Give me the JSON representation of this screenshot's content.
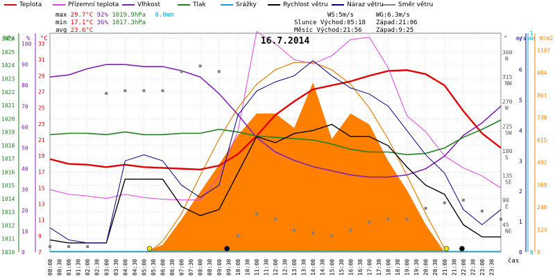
{
  "legend": [
    {
      "label": "Teplota",
      "color": "#e00000"
    },
    {
      "label": "Přízemní teplota",
      "color": "#e040e0"
    },
    {
      "label": "Vlhkost",
      "color": "#8020b0"
    },
    {
      "label": "Tlak",
      "color": "#208020"
    },
    {
      "label": "Srážky",
      "color": "#00aacc"
    },
    {
      "label": "Rychlost větru",
      "color": "#000000"
    },
    {
      "label": "Náraz větru",
      "color": "#000080"
    },
    {
      "label": "Směr větru",
      "color": "#808080"
    }
  ],
  "stats": {
    "max_label": "max",
    "max_temp": "29.7°C",
    "max_hum": "92%",
    "max_press": "1019.9hPa",
    "max_rain": "0.0mm",
    "min_label": "min",
    "min_temp": "17.1°C",
    "min_hum": "36%",
    "min_press": "1017.3hPa",
    "avg_label": "avg",
    "avg_temp": "23.6°C",
    "ws": "WS:5m/s",
    "wg": "WG:6.3m/s",
    "slunce": "Slunce Východ:05:18",
    "slunce_zapad": "Západ:21:06",
    "mesic": "Měsíc  Východ:21:56",
    "mesic_zapad": "Západ:9:25"
  },
  "colors": {
    "temp": "#e00000",
    "ground": "#e040e0",
    "hum": "#8020b0",
    "press": "#208020",
    "rain": "#00aacc",
    "wind": "#000000",
    "gust": "#000080",
    "dir": "#808080",
    "solar": "#ff8000",
    "solar_curve": "#e08000",
    "grid": "#c8c8c8"
  },
  "chart_data": {
    "type": "line",
    "title": "16.7.2014",
    "xlabel": "čas",
    "x": [
      "00:00",
      "00:30",
      "01:00",
      "01:30",
      "02:00",
      "02:30",
      "03:00",
      "03:30",
      "04:00",
      "04:30",
      "05:00",
      "05:30",
      "06:00",
      "06:30",
      "07:00",
      "07:30",
      "08:00",
      "08:30",
      "09:00",
      "09:30",
      "10:00",
      "10:30",
      "11:00",
      "11:30",
      "12:00",
      "12:30",
      "13:00",
      "13:30",
      "14:00",
      "14:30",
      "15:00",
      "15:30",
      "16:00",
      "16:30",
      "17:00",
      "17:30",
      "18:00",
      "18:30",
      "19:00",
      "19:30",
      "20:00",
      "20:30",
      "21:00",
      "21:30",
      "22:00",
      "22:30",
      "23:00",
      "23:30"
    ],
    "axes": {
      "hpa": {
        "label": "hPa",
        "ticks": [
          "1026",
          "1025",
          "1024",
          "1023",
          "1022",
          "1021",
          "1020",
          "1019",
          "1018",
          "1017",
          "1016",
          "1015",
          "1014",
          "1013",
          "1012",
          "1011",
          "1010"
        ],
        "range": [
          1010,
          1026.4
        ]
      },
      "pct": {
        "label": "%",
        "ticks": [
          "100",
          "90",
          "80",
          "70",
          "60",
          "50",
          "40",
          "30",
          "20",
          "10",
          "0"
        ],
        "range": [
          0,
          105
        ]
      },
      "temp": {
        "label": "°C",
        "ticks": [
          "33",
          "31",
          "29",
          "27",
          "25",
          "23",
          "21",
          "19",
          "17",
          "15",
          "13",
          "11",
          "9",
          "7"
        ],
        "range": [
          7,
          34.3
        ]
      },
      "dir": {
        "label": "°",
        "ticks": [
          {
            "deg": "360",
            "name": "N"
          },
          {
            "deg": "315",
            "name": "NW"
          },
          {
            "deg": "270",
            "name": "W"
          },
          {
            "deg": "225",
            "name": "SW"
          },
          {
            "deg": "180",
            "name": "S"
          },
          {
            "deg": "135",
            "name": "SE"
          },
          {
            "deg": "90",
            "name": "E"
          },
          {
            "deg": "45",
            "name": "NE"
          }
        ],
        "range": [
          0,
          400
        ]
      },
      "ms": {
        "label": "m/s",
        "ticks": [
          "7",
          "6",
          "5",
          "4",
          "3",
          "2",
          "1",
          "0"
        ],
        "range": [
          0,
          7.2
        ]
      },
      "mm": {
        "label": "mm",
        "ticks": [
          "1",
          "0"
        ],
        "range": [
          0,
          1
        ]
      },
      "wm2": {
        "label": "W/m2",
        "ticks": [
          "1107",
          "984",
          "861",
          "738",
          "615",
          "492",
          "369",
          "246",
          "123",
          "0"
        ],
        "range": [
          0,
          1200
        ]
      }
    },
    "series": [
      {
        "name": "Teplota",
        "axis": "temp",
        "x": [
          0,
          1,
          2,
          3,
          4,
          5,
          6,
          7,
          8,
          9,
          10,
          11,
          12,
          13,
          14,
          15,
          16,
          17,
          18,
          19,
          20,
          21,
          22,
          23,
          24
        ],
        "values": [
          18.6,
          18.0,
          17.9,
          17.6,
          17.9,
          17.6,
          17.5,
          17.4,
          17.3,
          17.8,
          19.2,
          21.5,
          24.1,
          25.8,
          27.3,
          27.8,
          28.3,
          29.0,
          29.6,
          29.7,
          29.2,
          27.8,
          24.6,
          21.8,
          20.0
        ]
      },
      {
        "name": "Přízemní teplota",
        "axis": "temp",
        "x": [
          0,
          1,
          2,
          3,
          4,
          5,
          6,
          7,
          8,
          9,
          10,
          11,
          12,
          13,
          14,
          15,
          16,
          17,
          18,
          19,
          20,
          21,
          22,
          23,
          24
        ],
        "values": [
          14.8,
          14.2,
          14.0,
          13.7,
          14.2,
          13.8,
          13.6,
          13.5,
          13.5,
          16.5,
          22.0,
          34.5,
          33.0,
          31.0,
          30.5,
          31.5,
          33.5,
          33.8,
          30.0,
          24.0,
          22.0,
          19.0,
          17.5,
          16.5,
          15.0
        ]
      },
      {
        "name": "Vlhkost",
        "axis": "pct",
        "x": [
          0,
          1,
          2,
          3,
          4,
          5,
          6,
          7,
          8,
          9,
          10,
          11,
          12,
          13,
          14,
          15,
          16,
          17,
          18,
          19,
          20,
          21,
          22,
          23,
          24
        ],
        "values": [
          84,
          85,
          88,
          90,
          90,
          89,
          89,
          87,
          84,
          76,
          66,
          55,
          48,
          44,
          41,
          39,
          37,
          36,
          36,
          37,
          40,
          46,
          56,
          62,
          70
        ]
      },
      {
        "name": "Tlak",
        "axis": "hpa",
        "x": [
          0,
          1,
          2,
          3,
          4,
          5,
          6,
          7,
          8,
          9,
          10,
          11,
          12,
          13,
          14,
          15,
          16,
          17,
          18,
          19,
          20,
          21,
          22,
          23,
          24
        ],
        "values": [
          1018.8,
          1018.9,
          1018.9,
          1018.8,
          1019.0,
          1018.8,
          1018.8,
          1018.9,
          1018.9,
          1019.2,
          1019.0,
          1018.7,
          1018.6,
          1018.5,
          1018.4,
          1018.1,
          1017.7,
          1017.5,
          1017.5,
          1017.3,
          1017.4,
          1017.8,
          1018.6,
          1019.2,
          1019.9
        ]
      },
      {
        "name": "Rychlost větru",
        "axis": "ms",
        "x": [
          0,
          1,
          2,
          3,
          4,
          5,
          6,
          7,
          8,
          9,
          10,
          11,
          12,
          13,
          14,
          15,
          16,
          17,
          18,
          19,
          20,
          21,
          22,
          23,
          24
        ],
        "values": [
          0.4,
          0.3,
          0.3,
          0.3,
          2.4,
          2.4,
          2.4,
          1.5,
          1.2,
          1.4,
          2.6,
          3.8,
          3.6,
          3.9,
          4.0,
          4.2,
          3.8,
          3.8,
          3.5,
          2.8,
          2.2,
          1.9,
          0.9,
          0.5,
          0.5
        ]
      },
      {
        "name": "Náraz větru",
        "axis": "ms",
        "x": [
          0,
          1,
          2,
          3,
          4,
          5,
          6,
          7,
          8,
          9,
          10,
          11,
          12,
          13,
          14,
          15,
          16,
          17,
          18,
          19,
          20,
          21,
          22,
          23,
          24
        ],
        "values": [
          0.8,
          0.4,
          0.3,
          0.3,
          3.0,
          3.2,
          3.0,
          2.2,
          1.8,
          2.2,
          4.5,
          5.3,
          5.6,
          5.8,
          6.3,
          5.8,
          5.4,
          5.2,
          4.8,
          4.0,
          3.2,
          2.6,
          1.4,
          0.9,
          1.4
        ]
      },
      {
        "name": "Směr větru",
        "axis": "dir",
        "x": [
          0,
          1,
          2,
          3,
          4,
          5,
          6,
          7,
          8,
          9,
          10,
          11,
          12,
          13,
          14,
          15,
          16,
          17,
          18,
          19,
          20,
          21,
          22,
          23,
          24
        ],
        "values": [
          10,
          10,
          10,
          290,
          295,
          295,
          295,
          330,
          340,
          330,
          30,
          70,
          60,
          40,
          35,
          30,
          40,
          55,
          60,
          60,
          80,
          90,
          95,
          75,
          60
        ]
      }
    ],
    "solar": {
      "axis": "wm2",
      "x": [
        5,
        6,
        7,
        8,
        9,
        10,
        11,
        12,
        13,
        14,
        15,
        16,
        17,
        18,
        19,
        20,
        21
      ],
      "values": [
        0,
        40,
        180,
        330,
        480,
        640,
        760,
        760,
        680,
        930,
        620,
        760,
        700,
        500,
        340,
        150,
        0
      ]
    },
    "solar_theoretical": {
      "axis": "wm2",
      "x": [
        5.3,
        6,
        7,
        8,
        9,
        10,
        11,
        12,
        13,
        14,
        15,
        16,
        17,
        18,
        19,
        20,
        21.1
      ],
      "values": [
        0,
        60,
        210,
        420,
        620,
        790,
        920,
        1000,
        1040,
        1040,
        1000,
        920,
        790,
        620,
        420,
        210,
        0
      ]
    },
    "markers": [
      {
        "type": "sunrise",
        "x": 5.3,
        "color": "#ffe000"
      },
      {
        "type": "moonset",
        "x": 9.42,
        "color": "#000000"
      },
      {
        "type": "sunset",
        "x": 21.1,
        "color": "#ffe000"
      },
      {
        "type": "moonrise",
        "x": 21.93,
        "color": "#000000"
      }
    ]
  }
}
